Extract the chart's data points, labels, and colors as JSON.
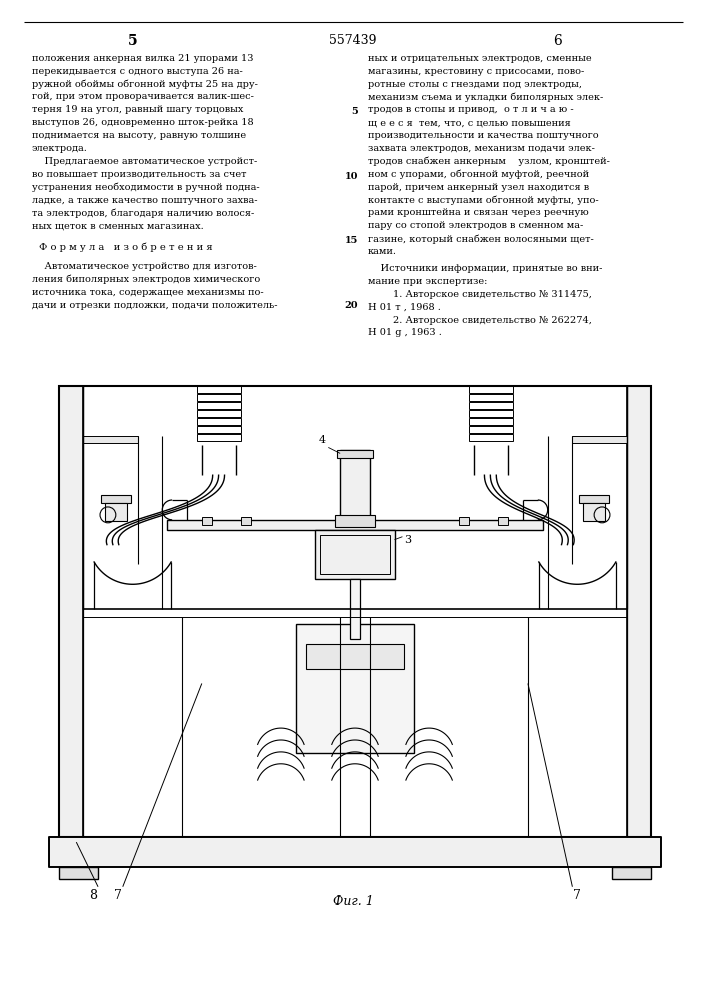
{
  "page_number_center": "557439",
  "page_left": "5",
  "page_right": "6",
  "bg_color": "#ffffff",
  "text_color": "#000000",
  "col_left_text": [
    "положения анкерная вилка 21 упорами 13",
    "перекидывается с одного выступа 26 на-",
    "ружной обоймы обгонной муфты 25 на дру-",
    "гой, при этом проворачивается валик-шес-",
    "терня 19 на угол, равный шагу торцовых",
    "выступов 26, одновременно шток-рейка 18",
    "поднимается на высоту, равную толшине",
    "электрода.",
    "    Предлагаемое автоматическое устройст-",
    "во повышает производительность за счет",
    "устранения необходимости в ручной подна-",
    "ладке, а также качество поштучного захва-",
    "та электродов, благодаря наличию волося-",
    "ных щеток в сменных магазинах."
  ],
  "formula_title": "Ф о р м у л а   и з о б р е т е н и я",
  "formula_text": [
    "    Автоматическое устройство для изготов-",
    "ления биполярных электродов химического",
    "источника тока, содержащее механизмы по-",
    "дачи и отрезки подложки, подачи положитель-"
  ],
  "col_right_text": [
    "ных и отрицательных электродов, сменные",
    "магазины, крестовину с присосами, пово-",
    "ротные столы с гнездами под электроды,",
    "механизм съема и укладки биполярных элек-",
    "тродов в стопы и привод,  о т л и ч а ю -",
    "щ е е с я  тем, что, с целью повышения",
    "производительности и качества поштучного",
    "захвата электродов, механизм подачи элек-",
    "тродов снабжен анкерным    узлом, кронштей-",
    "ном с упорами, обгонной муфтой, реечной",
    "парой, причем анкерный узел находится в",
    "контакте с выступами обгонной муфты, упо-",
    "рами кронштейна и связан через реечную",
    "пару со стопой электродов в сменном ма-",
    "газине, который снабжен волосяными щет-",
    "ками."
  ],
  "sources_title": "    Источники информации, принятые во вни-",
  "sources_text": [
    "мание при экспертизе:",
    "        1. Авторское свидетельство № 311475,",
    "Н 01 т , 1968 .",
    "        2. Авторское свидетельство № 262274,",
    "Н 01 g , 1963 ."
  ],
  "fig_label": "Фиг. 1"
}
